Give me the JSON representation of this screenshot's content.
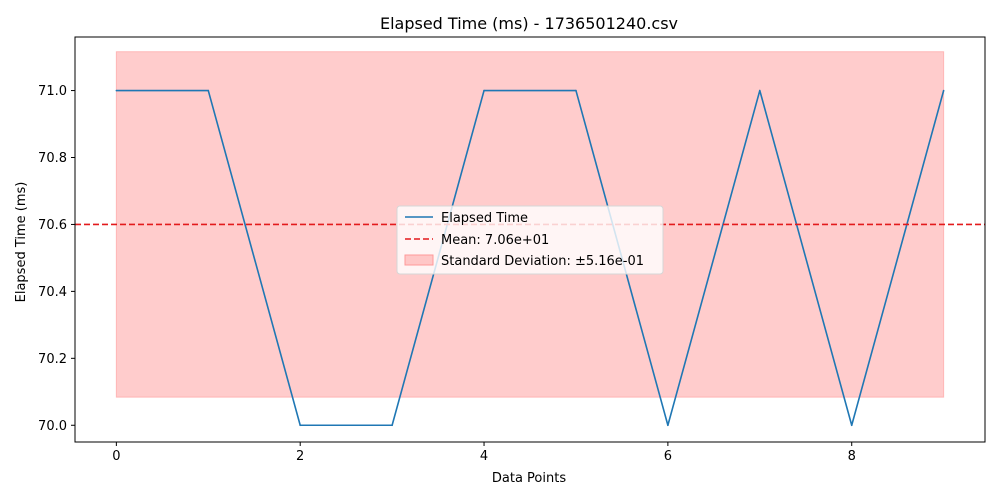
{
  "chart_data": {
    "type": "line",
    "title": "Elapsed Time (ms) - 1736501240.csv",
    "xlabel": "Data Points",
    "ylabel": "Elapsed Time (ms)",
    "x": [
      0,
      1,
      2,
      3,
      4,
      5,
      6,
      7,
      8,
      9
    ],
    "series": [
      {
        "name": "Elapsed Time",
        "values": [
          71.0,
          71.0,
          70.0,
          70.0,
          71.0,
          71.0,
          70.0,
          71.0,
          70.0,
          71.0
        ],
        "color": "#1f77b4"
      }
    ],
    "mean": {
      "label": "Mean: 7.06e+01",
      "value": 70.6,
      "color": "#e31a1c"
    },
    "std_band": {
      "label": "Standard Deviation: ±5.16e-01",
      "lower": 70.084,
      "upper": 71.116,
      "color": "#ff9999"
    },
    "xlim": [
      -0.45,
      9.45
    ],
    "ylim": [
      69.95,
      71.16
    ],
    "xticks": [
      0,
      2,
      4,
      6,
      8
    ],
    "xtick_labels": [
      "0",
      "2",
      "4",
      "6",
      "8"
    ],
    "yticks": [
      70.0,
      70.2,
      70.4,
      70.6,
      70.8,
      71.0
    ],
    "ytick_labels": [
      "70.0",
      "70.2",
      "70.4",
      "70.6",
      "70.8",
      "71.0"
    ],
    "grid": false,
    "legend_position": "center"
  }
}
